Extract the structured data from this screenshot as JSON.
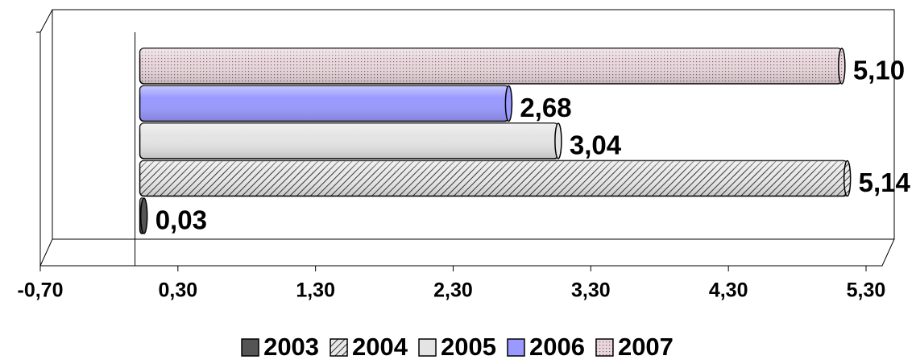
{
  "chart_data": {
    "type": "bar",
    "orientation": "horizontal",
    "series": [
      {
        "name": "2003",
        "color": "#555555",
        "values": [
          0.03
        ],
        "value_labels": [
          "0,03"
        ]
      },
      {
        "name": "2004",
        "color": "#b8b8b8",
        "values": [
          5.14
        ],
        "value_labels": [
          "5,14"
        ]
      },
      {
        "name": "2005",
        "color": "#e4e4e4",
        "values": [
          3.04
        ],
        "value_labels": [
          "3,04"
        ]
      },
      {
        "name": "2006",
        "color": "#9999ff",
        "values": [
          2.68
        ],
        "value_labels": [
          "2,68"
        ]
      },
      {
        "name": "2007",
        "color": "#ead6dc",
        "values": [
          5.1
        ],
        "value_labels": [
          "5,10"
        ]
      }
    ],
    "xlim": [
      -0.7,
      5.3
    ],
    "xticks": [
      {
        "value": -0.7,
        "label": "-0,70"
      },
      {
        "value": 0.3,
        "label": "0,30"
      },
      {
        "value": 1.3,
        "label": "1,30"
      },
      {
        "value": 2.3,
        "label": "2,30"
      },
      {
        "value": 3.3,
        "label": "3,30"
      },
      {
        "value": 4.3,
        "label": "4,30"
      },
      {
        "value": 5.3,
        "label": "5,30"
      }
    ],
    "legend": "bottom"
  }
}
